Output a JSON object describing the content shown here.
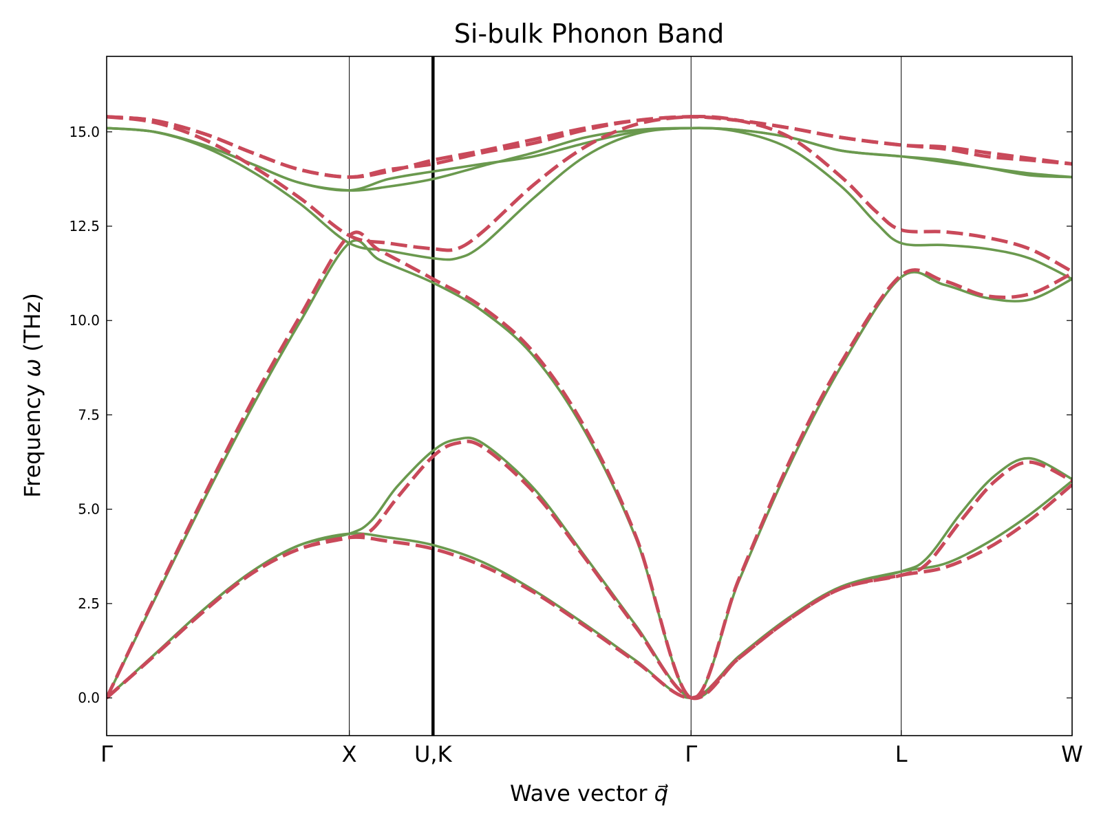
{
  "chart_data": {
    "type": "line",
    "title": "Si-bulk Phonon Band",
    "xlabel": "Wave vector q⃗",
    "xlabel_text": "Wave vector ",
    "xlabel_symbol": "q⃗",
    "ylabel_text": "Frequency ",
    "ylabel_symbol": "ω",
    "ylabel_unit": " (THz)",
    "ylabel": "Frequency ω (THz)",
    "ylim": [
      -1.0,
      17.0
    ],
    "xlim": [
      0,
      5.65
    ],
    "grid": false,
    "yticks": [
      0.0,
      2.5,
      5.0,
      7.5,
      10.0,
      12.5,
      15.0
    ],
    "ytick_labels": [
      "0.0",
      "2.5",
      "5.0",
      "7.5",
      "10.0",
      "12.5",
      "15.0"
    ],
    "kpoints": [
      {
        "label": "Γ",
        "x": 0.0,
        "line": "none"
      },
      {
        "label": "X",
        "x": 1.42,
        "line": "thin"
      },
      {
        "label": "U,K",
        "x": 1.91,
        "line": "thick"
      },
      {
        "label": "Γ",
        "x": 3.42,
        "line": "thin"
      },
      {
        "label": "L",
        "x": 4.65,
        "line": "thin"
      },
      {
        "label": "W",
        "x": 5.65,
        "line": "none"
      }
    ],
    "series": [
      {
        "style": "solid",
        "color": "#6a994e",
        "bands": [
          [
            [
              0,
              0
            ],
            [
              0.28,
              1.15
            ],
            [
              0.57,
              2.35
            ],
            [
              0.85,
              3.35
            ],
            [
              1.13,
              4.05
            ],
            [
              1.42,
              4.35
            ],
            [
              1.65,
              4.25
            ],
            [
              1.91,
              4.05
            ],
            [
              2.2,
              3.6
            ],
            [
              2.5,
              2.85
            ],
            [
              2.8,
              1.95
            ],
            [
              3.1,
              0.98
            ],
            [
              3.42,
              0
            ],
            [
              3.7,
              1.1
            ],
            [
              4.0,
              2.15
            ],
            [
              4.3,
              2.95
            ],
            [
              4.65,
              3.35
            ],
            [
              4.9,
              3.55
            ],
            [
              5.15,
              4.1
            ],
            [
              5.4,
              4.85
            ],
            [
              5.65,
              5.75
            ]
          ],
          [
            [
              0,
              0
            ],
            [
              0.28,
              1.15
            ],
            [
              0.57,
              2.35
            ],
            [
              0.85,
              3.35
            ],
            [
              1.13,
              4.05
            ],
            [
              1.42,
              4.35
            ],
            [
              1.55,
              4.7
            ],
            [
              1.7,
              5.6
            ],
            [
              1.91,
              6.55
            ],
            [
              2.05,
              6.85
            ],
            [
              2.2,
              6.75
            ],
            [
              2.5,
              5.55
            ],
            [
              2.8,
              3.75
            ],
            [
              3.1,
              1.9
            ],
            [
              3.42,
              0
            ],
            [
              3.7,
              1.1
            ],
            [
              4.0,
              2.15
            ],
            [
              4.3,
              2.95
            ],
            [
              4.65,
              3.35
            ],
            [
              4.8,
              3.7
            ],
            [
              5.0,
              4.9
            ],
            [
              5.2,
              5.9
            ],
            [
              5.4,
              6.35
            ],
            [
              5.65,
              5.8
            ]
          ],
          [
            [
              0,
              0
            ],
            [
              0.28,
              2.6
            ],
            [
              0.57,
              5.25
            ],
            [
              0.85,
              7.7
            ],
            [
              1.13,
              9.95
            ],
            [
              1.42,
              12.05
            ],
            [
              1.6,
              11.6
            ],
            [
              1.91,
              11.0
            ],
            [
              2.2,
              10.25
            ],
            [
              2.5,
              9.05
            ],
            [
              2.8,
              7.05
            ],
            [
              3.1,
              4.2
            ],
            [
              3.42,
              0
            ],
            [
              3.7,
              3.1
            ],
            [
              4.0,
              6.2
            ],
            [
              4.3,
              8.8
            ],
            [
              4.65,
              11.15
            ],
            [
              4.9,
              10.95
            ],
            [
              5.15,
              10.6
            ],
            [
              5.4,
              10.55
            ],
            [
              5.65,
              11.1
            ]
          ],
          [
            [
              0,
              15.1
            ],
            [
              0.28,
              15.0
            ],
            [
              0.57,
              14.6
            ],
            [
              0.85,
              13.95
            ],
            [
              1.13,
              13.1
            ],
            [
              1.42,
              12.05
            ],
            [
              1.65,
              11.85
            ],
            [
              1.91,
              11.65
            ],
            [
              2.05,
              11.65
            ],
            [
              2.2,
              12.0
            ],
            [
              2.5,
              13.25
            ],
            [
              2.8,
              14.35
            ],
            [
              3.1,
              14.95
            ],
            [
              3.42,
              15.1
            ],
            [
              3.7,
              15.0
            ],
            [
              4.0,
              14.55
            ],
            [
              4.3,
              13.55
            ],
            [
              4.5,
              12.6
            ],
            [
              4.65,
              12.05
            ],
            [
              4.9,
              12.0
            ],
            [
              5.15,
              11.9
            ],
            [
              5.4,
              11.65
            ],
            [
              5.65,
              11.1
            ]
          ],
          [
            [
              0,
              15.1
            ],
            [
              0.28,
              15.0
            ],
            [
              0.57,
              14.65
            ],
            [
              0.85,
              14.15
            ],
            [
              1.13,
              13.65
            ],
            [
              1.42,
              13.45
            ],
            [
              1.65,
              13.55
            ],
            [
              1.91,
              13.75
            ],
            [
              2.2,
              14.1
            ],
            [
              2.5,
              14.45
            ],
            [
              2.8,
              14.85
            ],
            [
              3.1,
              15.05
            ],
            [
              3.42,
              15.1
            ],
            [
              3.7,
              15.05
            ],
            [
              4.0,
              14.85
            ],
            [
              4.3,
              14.5
            ],
            [
              4.65,
              14.35
            ],
            [
              4.9,
              14.2
            ],
            [
              5.15,
              14.05
            ],
            [
              5.4,
              13.9
            ],
            [
              5.65,
              13.8
            ]
          ],
          [
            [
              0,
              15.1
            ],
            [
              0.28,
              15.0
            ],
            [
              0.57,
              14.65
            ],
            [
              0.85,
              14.15
            ],
            [
              1.13,
              13.65
            ],
            [
              1.42,
              13.45
            ],
            [
              1.65,
              13.75
            ],
            [
              1.91,
              13.95
            ],
            [
              2.2,
              14.15
            ],
            [
              2.5,
              14.35
            ],
            [
              2.8,
              14.7
            ],
            [
              3.1,
              15.0
            ],
            [
              3.42,
              15.1
            ],
            [
              3.7,
              15.05
            ],
            [
              4.0,
              14.85
            ],
            [
              4.3,
              14.5
            ],
            [
              4.65,
              14.35
            ],
            [
              4.9,
              14.25
            ],
            [
              5.15,
              14.05
            ],
            [
              5.4,
              13.85
            ],
            [
              5.65,
              13.8
            ]
          ]
        ]
      },
      {
        "style": "dashed",
        "color": "#c9495a",
        "bands": [
          [
            [
              0,
              0
            ],
            [
              0.28,
              1.12
            ],
            [
              0.57,
              2.3
            ],
            [
              0.85,
              3.3
            ],
            [
              1.13,
              3.95
            ],
            [
              1.42,
              4.25
            ],
            [
              1.65,
              4.15
            ],
            [
              1.91,
              3.95
            ],
            [
              2.2,
              3.5
            ],
            [
              2.5,
              2.8
            ],
            [
              2.8,
              1.9
            ],
            [
              3.1,
              0.95
            ],
            [
              3.42,
              0
            ],
            [
              3.7,
              1.05
            ],
            [
              4.0,
              2.1
            ],
            [
              4.3,
              2.9
            ],
            [
              4.65,
              3.25
            ],
            [
              4.9,
              3.45
            ],
            [
              5.15,
              3.95
            ],
            [
              5.4,
              4.7
            ],
            [
              5.65,
              5.65
            ]
          ],
          [
            [
              0,
              0
            ],
            [
              0.28,
              1.12
            ],
            [
              0.57,
              2.3
            ],
            [
              0.85,
              3.3
            ],
            [
              1.13,
              3.95
            ],
            [
              1.42,
              4.25
            ],
            [
              1.55,
              4.45
            ],
            [
              1.7,
              5.3
            ],
            [
              1.91,
              6.4
            ],
            [
              2.05,
              6.75
            ],
            [
              2.2,
              6.65
            ],
            [
              2.5,
              5.45
            ],
            [
              2.8,
              3.7
            ],
            [
              3.1,
              1.85
            ],
            [
              3.42,
              0
            ],
            [
              3.7,
              1.05
            ],
            [
              4.0,
              2.1
            ],
            [
              4.3,
              2.9
            ],
            [
              4.65,
              3.25
            ],
            [
              4.8,
              3.55
            ],
            [
              5.0,
              4.7
            ],
            [
              5.2,
              5.75
            ],
            [
              5.4,
              6.25
            ],
            [
              5.65,
              5.75
            ]
          ],
          [
            [
              0,
              0
            ],
            [
              0.28,
              2.65
            ],
            [
              0.57,
              5.35
            ],
            [
              0.85,
              7.85
            ],
            [
              1.13,
              10.1
            ],
            [
              1.42,
              12.25
            ],
            [
              1.6,
              11.85
            ],
            [
              1.91,
              11.1
            ],
            [
              2.2,
              10.35
            ],
            [
              2.5,
              9.15
            ],
            [
              2.8,
              7.15
            ],
            [
              3.1,
              4.25
            ],
            [
              3.42,
              0
            ],
            [
              3.7,
              3.15
            ],
            [
              4.0,
              6.3
            ],
            [
              4.3,
              8.9
            ],
            [
              4.65,
              11.2
            ],
            [
              4.9,
              11.05
            ],
            [
              5.15,
              10.65
            ],
            [
              5.4,
              10.7
            ],
            [
              5.65,
              11.25
            ]
          ],
          [
            [
              0,
              15.4
            ],
            [
              0.28,
              15.25
            ],
            [
              0.57,
              14.8
            ],
            [
              0.85,
              14.1
            ],
            [
              1.13,
              13.25
            ],
            [
              1.42,
              12.25
            ],
            [
              1.65,
              12.05
            ],
            [
              1.91,
              11.9
            ],
            [
              2.05,
              11.9
            ],
            [
              2.2,
              12.35
            ],
            [
              2.5,
              13.6
            ],
            [
              2.8,
              14.6
            ],
            [
              3.1,
              15.2
            ],
            [
              3.42,
              15.4
            ],
            [
              3.7,
              15.3
            ],
            [
              4.0,
              14.85
            ],
            [
              4.3,
              13.8
            ],
            [
              4.5,
              12.9
            ],
            [
              4.65,
              12.4
            ],
            [
              4.9,
              12.35
            ],
            [
              5.15,
              12.2
            ],
            [
              5.4,
              11.9
            ],
            [
              5.65,
              11.3
            ]
          ],
          [
            [
              0,
              15.4
            ],
            [
              0.28,
              15.3
            ],
            [
              0.57,
              14.95
            ],
            [
              0.85,
              14.45
            ],
            [
              1.13,
              14.0
            ],
            [
              1.42,
              13.8
            ],
            [
              1.65,
              13.95
            ],
            [
              1.91,
              14.25
            ],
            [
              2.2,
              14.5
            ],
            [
              2.5,
              14.8
            ],
            [
              2.8,
              15.1
            ],
            [
              3.1,
              15.3
            ],
            [
              3.42,
              15.4
            ],
            [
              3.7,
              15.3
            ],
            [
              4.0,
              15.1
            ],
            [
              4.3,
              14.85
            ],
            [
              4.65,
              14.65
            ],
            [
              4.9,
              14.6
            ],
            [
              5.15,
              14.45
            ],
            [
              5.4,
              14.3
            ],
            [
              5.65,
              14.15
            ]
          ],
          [
            [
              0,
              15.4
            ],
            [
              0.28,
              15.3
            ],
            [
              0.57,
              14.95
            ],
            [
              0.85,
              14.45
            ],
            [
              1.13,
              14.0
            ],
            [
              1.42,
              13.8
            ],
            [
              1.65,
              14.0
            ],
            [
              1.91,
              14.15
            ],
            [
              2.2,
              14.45
            ],
            [
              2.5,
              14.7
            ],
            [
              2.8,
              15.05
            ],
            [
              3.1,
              15.3
            ],
            [
              3.42,
              15.4
            ],
            [
              3.7,
              15.3
            ],
            [
              4.0,
              15.1
            ],
            [
              4.3,
              14.85
            ],
            [
              4.65,
              14.65
            ],
            [
              4.9,
              14.55
            ],
            [
              5.15,
              14.35
            ],
            [
              5.4,
              14.25
            ],
            [
              5.65,
              14.15
            ]
          ]
        ]
      }
    ]
  }
}
